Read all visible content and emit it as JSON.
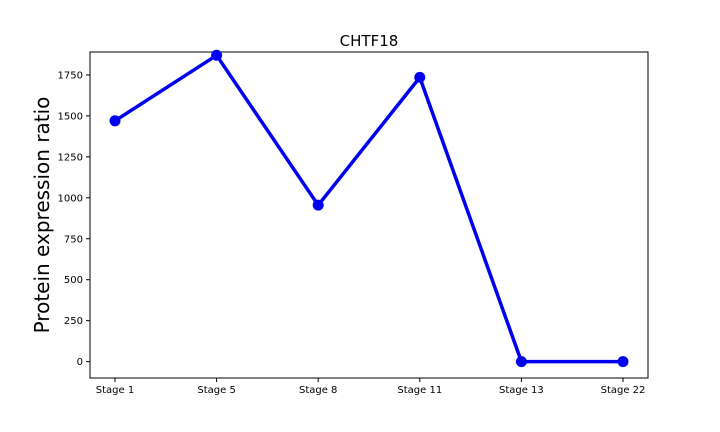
{
  "chart_data": {
    "type": "line",
    "title": "CHTF18",
    "xlabel": "",
    "ylabel": "Protein expression ratio",
    "categories": [
      "Stage 1",
      "Stage 5",
      "Stage 8",
      "Stage 11",
      "Stage 13",
      "Stage 22"
    ],
    "series": [
      {
        "values": [
          1470,
          1870,
          955,
          1735,
          0,
          0
        ],
        "color": "#0000ee",
        "marker": "circle"
      }
    ],
    "ylim": [
      -100,
      1890
    ],
    "yticks": [
      0,
      250,
      500,
      750,
      1000,
      1250,
      1500,
      1750
    ],
    "ytick_labels": [
      "0",
      "250",
      "500",
      "750",
      "1000",
      "1250",
      "1500",
      "1750"
    ],
    "grid": false,
    "legend": "none"
  }
}
